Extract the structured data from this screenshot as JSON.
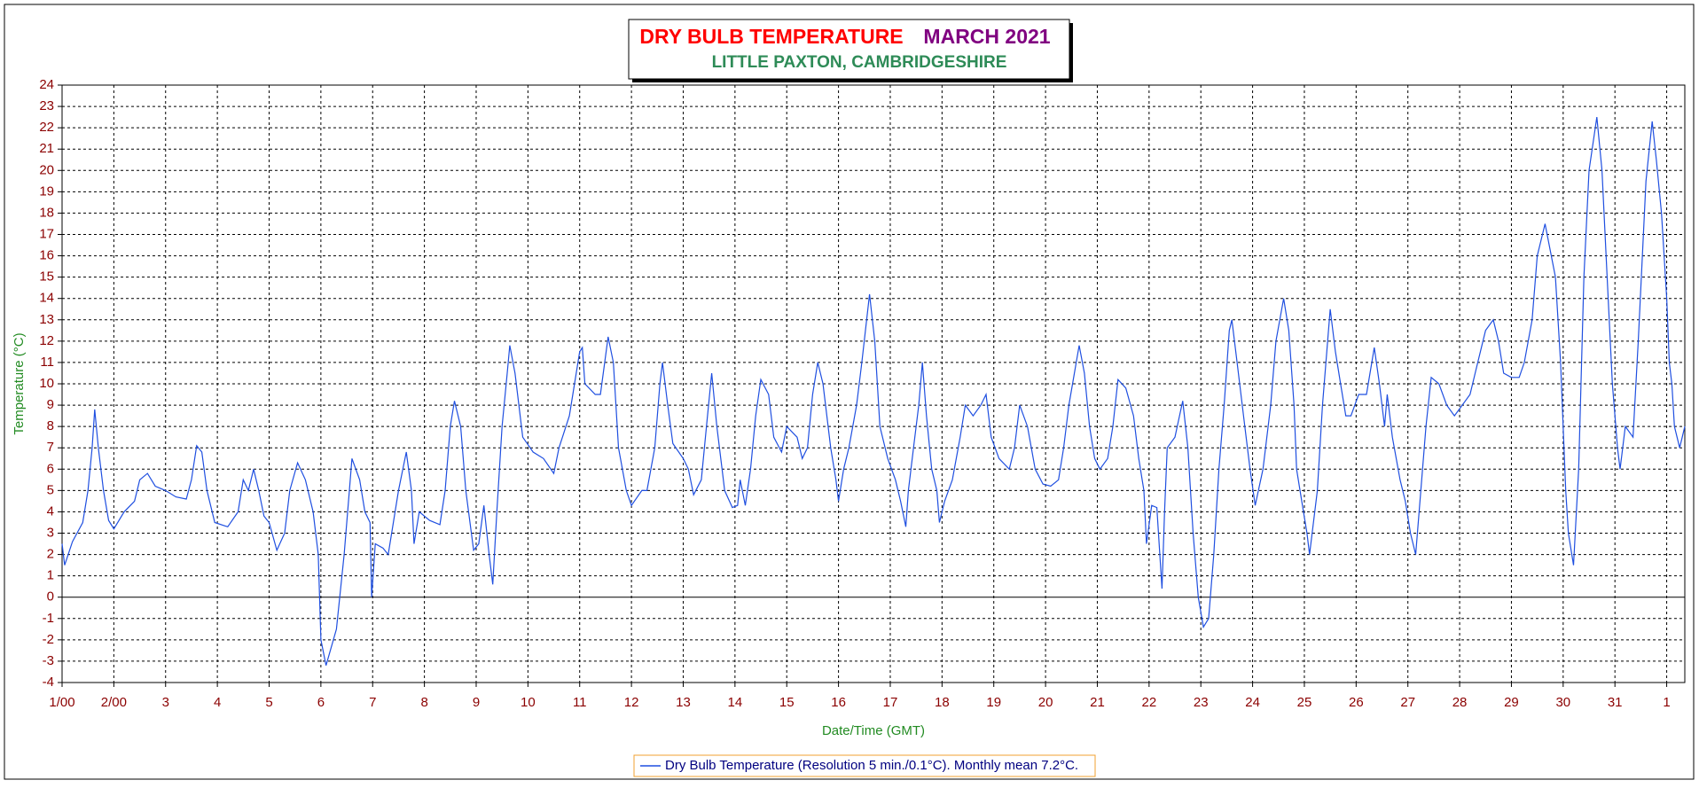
{
  "chart_data": {
    "type": "line",
    "title": "DRY BULB TEMPERATURE",
    "title_period": "MARCH 2021",
    "subtitle": "LITTLE PAXTON, CAMBRIDGESHIRE",
    "y_label": "Temperature (°C)",
    "x_label": "Date/Time (GMT)",
    "grid": true,
    "xlim": [
      0,
      31.35
    ],
    "ylim": [
      -4,
      24
    ],
    "yticks": [
      -4,
      -3,
      -2,
      -1,
      0,
      1,
      2,
      3,
      4,
      5,
      6,
      7,
      8,
      9,
      10,
      11,
      12,
      13,
      14,
      15,
      16,
      17,
      18,
      19,
      20,
      21,
      22,
      23,
      24
    ],
    "xticks": [
      {
        "value": 0,
        "label": "1/00"
      },
      {
        "value": 1,
        "label": "2/00"
      },
      {
        "value": 2,
        "label": "3"
      },
      {
        "value": 3,
        "label": "4"
      },
      {
        "value": 4,
        "label": "5"
      },
      {
        "value": 5,
        "label": "6"
      },
      {
        "value": 6,
        "label": "7"
      },
      {
        "value": 7,
        "label": "8"
      },
      {
        "value": 8,
        "label": "9"
      },
      {
        "value": 9,
        "label": "10"
      },
      {
        "value": 10,
        "label": "11"
      },
      {
        "value": 11,
        "label": "12"
      },
      {
        "value": 12,
        "label": "13"
      },
      {
        "value": 13,
        "label": "14"
      },
      {
        "value": 14,
        "label": "15"
      },
      {
        "value": 15,
        "label": "16"
      },
      {
        "value": 16,
        "label": "17"
      },
      {
        "value": 17,
        "label": "18"
      },
      {
        "value": 18,
        "label": "19"
      },
      {
        "value": 19,
        "label": "20"
      },
      {
        "value": 20,
        "label": "21"
      },
      {
        "value": 21,
        "label": "22"
      },
      {
        "value": 22,
        "label": "23"
      },
      {
        "value": 23,
        "label": "24"
      },
      {
        "value": 24,
        "label": "25"
      },
      {
        "value": 25,
        "label": "26"
      },
      {
        "value": 26,
        "label": "27"
      },
      {
        "value": 27,
        "label": "28"
      },
      {
        "value": 28,
        "label": "29"
      },
      {
        "value": 29,
        "label": "30"
      },
      {
        "value": 30,
        "label": "31"
      },
      {
        "value": 31,
        "label": "1"
      }
    ],
    "x": [
      0,
      0.05,
      0.2,
      0.4,
      0.5,
      0.58,
      0.63,
      0.7,
      0.8,
      0.9,
      1.0,
      1.2,
      1.4,
      1.5,
      1.65,
      1.8,
      2.0,
      2.2,
      2.4,
      2.5,
      2.6,
      2.7,
      2.8,
      2.95,
      3.2,
      3.4,
      3.5,
      3.6,
      3.7,
      3.8,
      3.9,
      4.0,
      4.15,
      4.3,
      4.4,
      4.55,
      4.7,
      4.85,
      4.95,
      5.0,
      5.1,
      5.3,
      5.45,
      5.55,
      5.6,
      5.75,
      5.85,
      5.95,
      5.98,
      6.05,
      6.2,
      6.3,
      6.4,
      6.5,
      6.65,
      6.75,
      6.8,
      6.9,
      7.1,
      7.3,
      7.4,
      7.5,
      7.58,
      7.7,
      7.8,
      7.95,
      8.05,
      8.15,
      8.25,
      8.32,
      8.4,
      8.5,
      8.6,
      8.65,
      8.75,
      8.9,
      9.1,
      9.3,
      9.5,
      9.6,
      9.8,
      9.9,
      10.0,
      10.05,
      10.1,
      10.3,
      10.4,
      10.55,
      10.65,
      10.75,
      10.9,
      11.0,
      11.2,
      11.3,
      11.45,
      11.55,
      11.6,
      11.7,
      11.8,
      12.0,
      12.1,
      12.2,
      12.35,
      12.45,
      12.55,
      12.65,
      12.75,
      12.8,
      12.95,
      13.05,
      13.1,
      13.2,
      13.3,
      13.4,
      13.5,
      13.65,
      13.75,
      13.9,
      14.0,
      14.2,
      14.3,
      14.4,
      14.5,
      14.6,
      14.7,
      14.85,
      14.95,
      15.0,
      15.1,
      15.2,
      15.35,
      15.45,
      15.6,
      15.7,
      15.8,
      15.95,
      16.1,
      16.2,
      16.3,
      16.35,
      16.45,
      16.55,
      16.62,
      16.7,
      16.8,
      16.9,
      16.95,
      17.05,
      17.2,
      17.35,
      17.45,
      17.6,
      17.75,
      17.85,
      17.95,
      18.1,
      18.3,
      18.4,
      18.5,
      18.65,
      18.8,
      18.95,
      19.1,
      19.25,
      19.35,
      19.45,
      19.65,
      19.75,
      19.85,
      19.95,
      20.05,
      20.2,
      20.3,
      20.4,
      20.55,
      20.7,
      20.8,
      20.9,
      20.95,
      21.05,
      21.15,
      21.25,
      21.3,
      21.35,
      21.5,
      21.65,
      21.75,
      21.85,
      21.95,
      22.05,
      22.15,
      22.25,
      22.35,
      22.45,
      22.55,
      22.6,
      22.7,
      22.85,
      22.95,
      23.05,
      23.2,
      23.35,
      23.45,
      23.6,
      23.7,
      23.8,
      23.85,
      23.95,
      24.05,
      24.1,
      24.25,
      24.35,
      24.5,
      24.6,
      24.7,
      24.8,
      24.9,
      25.05,
      25.2,
      25.35,
      25.45,
      25.55,
      25.6,
      25.7,
      25.85,
      25.95,
      26.05,
      26.15,
      26.25,
      26.35,
      26.45,
      26.6,
      26.75,
      26.9,
      27.05,
      27.2,
      27.35,
      27.5,
      27.65,
      27.75,
      27.85,
      28.0,
      28.15,
      28.25,
      28.4,
      28.5,
      28.65,
      28.85,
      28.95,
      29.0,
      29.05,
      29.1,
      29.2,
      29.3,
      29.4,
      29.5,
      29.65,
      29.75,
      29.85,
      29.95,
      30.05,
      30.1,
      30.2,
      30.35,
      30.45,
      30.55,
      30.6,
      30.72,
      30.8,
      30.9,
      31.0,
      31.05,
      31.1,
      31.15,
      31.25,
      31.3,
      31.35
    ],
    "series": [
      {
        "name": "Dry Bulb Temperature (Resolution 5 min./0.1°C). Monthly mean 7.2°C.",
        "color": "#1f4fe0",
        "values": [
          2.5,
          1.5,
          2.6,
          3.5,
          5,
          7,
          8.8,
          7,
          5,
          3.6,
          3.2,
          4,
          4.5,
          5.5,
          5.8,
          5.2,
          5,
          4.7,
          4.6,
          5.5,
          7.1,
          6.8,
          5,
          3.5,
          3.3,
          4,
          5.5,
          5,
          6,
          5,
          3.8,
          3.5,
          2.2,
          3,
          5,
          6.3,
          5.5,
          4,
          2,
          -2,
          -3.2,
          -1.5,
          2,
          5,
          6.5,
          5.5,
          4,
          3.5,
          0,
          2.5,
          2.3,
          2,
          3.5,
          5,
          6.8,
          5,
          2.5,
          4,
          3.6,
          3.4,
          5,
          8,
          9.2,
          8,
          5,
          2.2,
          2.5,
          4.3,
          2,
          0.6,
          4,
          8,
          10.5,
          11.8,
          10.5,
          7.5,
          6.8,
          6.5,
          5.8,
          7,
          8.5,
          10,
          11.5,
          11.7,
          10,
          9.5,
          9.5,
          12.2,
          11,
          7,
          5,
          4.3,
          5,
          5,
          7,
          10,
          11,
          9,
          7.2,
          6.5,
          6,
          4.8,
          5.5,
          8,
          10.5,
          8,
          6,
          5,
          4.2,
          4.3,
          5.5,
          4.3,
          6,
          8.5,
          10.2,
          9.5,
          7.5,
          6.8,
          8,
          7.5,
          6.5,
          7,
          9.5,
          11,
          10,
          7,
          5.5,
          4.5,
          6,
          7,
          9,
          11,
          14.2,
          12,
          8,
          6.5,
          5.5,
          4.5,
          3.3,
          5,
          7,
          9,
          11,
          8.5,
          6,
          5,
          3.5,
          4.5,
          5.5,
          7.5,
          9,
          8.5,
          9,
          9.5,
          7.5,
          6.5,
          6,
          7,
          9,
          8,
          6,
          5.3,
          5.2,
          5.5,
          7,
          9,
          11.8,
          10.5,
          8,
          6.5,
          6,
          6.5,
          8,
          10.2,
          9.8,
          8.5,
          6.5,
          5,
          2.5,
          4.3,
          4.2,
          0.4,
          4,
          7,
          7.5,
          9.2,
          7,
          3,
          0,
          -1.4,
          -1,
          2,
          6,
          9,
          12.5,
          13,
          11,
          8,
          6,
          4.3,
          6,
          9,
          12,
          14,
          12.5,
          9,
          6,
          4.5,
          3,
          2,
          5,
          9,
          13.5,
          11.5,
          10,
          8.5,
          8.5,
          9.5,
          9.5,
          11.7,
          10,
          8,
          9.5,
          7.5,
          5.5,
          4.5,
          3,
          2,
          5,
          8,
          10.3,
          10,
          9,
          8.5,
          9,
          9.5,
          11,
          12.5,
          13,
          12,
          10.5,
          10.3,
          10.3,
          11,
          13,
          16,
          17.5,
          15,
          11,
          8,
          5,
          3,
          1.5,
          6,
          15,
          20,
          22.5,
          20,
          15,
          10,
          7,
          6,
          8,
          7.5,
          12,
          17,
          19.5,
          22.3,
          20.5,
          18,
          14,
          11,
          10,
          8,
          7,
          7.5,
          8
        ]
      }
    ]
  }
}
